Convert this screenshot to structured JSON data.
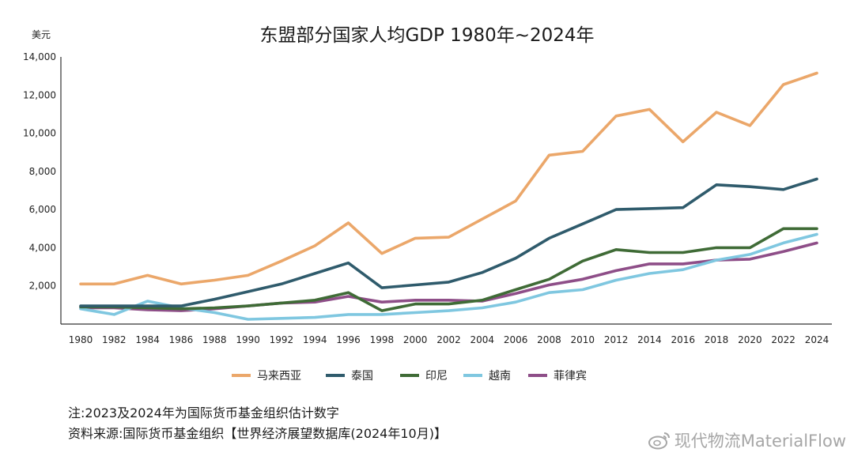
{
  "chart_data": {
    "type": "line",
    "title": "东盟部分国家人均GDP 1980年~2024年",
    "ylabel": "美元",
    "ylim": [
      0,
      14000
    ],
    "yticks": [
      2000,
      4000,
      6000,
      8000,
      10000,
      12000,
      14000
    ],
    "ytick_labels": [
      "2,000",
      "4,000",
      "6,000",
      "8,000",
      "10,000",
      "12,000",
      "14,000"
    ],
    "x": [
      1980,
      1982,
      1984,
      1986,
      1988,
      1990,
      1992,
      1994,
      1996,
      1998,
      2000,
      2002,
      2004,
      2006,
      2008,
      2010,
      2012,
      2014,
      2016,
      2018,
      2020,
      2022,
      2024
    ],
    "xtick_labels": [
      "1980",
      "1982",
      "1984",
      "1986",
      "1988",
      "1990",
      "1992",
      "1994",
      "1996",
      "1998",
      "2000",
      "2002",
      "2004",
      "2006",
      "2008",
      "2010",
      "2012",
      "2014",
      "2016",
      "2018",
      "2020",
      "2022",
      "2024"
    ],
    "xlim": [
      1980,
      2024
    ],
    "grid": false,
    "legend_position": "bottom",
    "series": [
      {
        "name": "马来西亚",
        "color": "#eba76a",
        "values": [
          2100,
          2100,
          2550,
          2100,
          2300,
          2550,
          3300,
          4100,
          5300,
          3700,
          4500,
          4550,
          5500,
          6450,
          8850,
          9050,
          10900,
          11250,
          9550,
          11100,
          10400,
          12550,
          13150
        ]
      },
      {
        "name": "泰国",
        "color": "#2f5b6c",
        "values": [
          950,
          950,
          950,
          950,
          1300,
          1700,
          2100,
          2650,
          3200,
          1900,
          2050,
          2200,
          2700,
          3450,
          4500,
          5250,
          6000,
          6050,
          6100,
          7300,
          7200,
          7050,
          7600
        ]
      },
      {
        "name": "印尼",
        "color": "#3f6b36",
        "values": [
          900,
          900,
          850,
          800,
          850,
          950,
          1100,
          1250,
          1650,
          700,
          1050,
          1050,
          1250,
          1800,
          2350,
          3300,
          3900,
          3750,
          3750,
          4000,
          4000,
          5000,
          5000
        ]
      },
      {
        "name": "越南",
        "color": "#7fc7e0",
        "values": [
          800,
          500,
          1200,
          850,
          600,
          250,
          300,
          350,
          500,
          500,
          600,
          700,
          850,
          1150,
          1650,
          1800,
          2300,
          2650,
          2850,
          3350,
          3650,
          4250,
          4700
        ]
      },
      {
        "name": "菲律宾",
        "color": "#8e4e88",
        "values": [
          850,
          850,
          750,
          700,
          800,
          950,
          1100,
          1150,
          1450,
          1150,
          1250,
          1250,
          1200,
          1600,
          2050,
          2350,
          2800,
          3150,
          3150,
          3350,
          3400,
          3800,
          4250
        ]
      }
    ]
  },
  "notes": {
    "line1": "注:2023及2024年为国际货币基金组织估计数字",
    "line2": "资料来源:国际货币基金组织【世界经济展望数据库(2024年10月)】"
  },
  "watermark": {
    "text": "现代物流MaterialFlow",
    "icon": "weibo-icon"
  }
}
